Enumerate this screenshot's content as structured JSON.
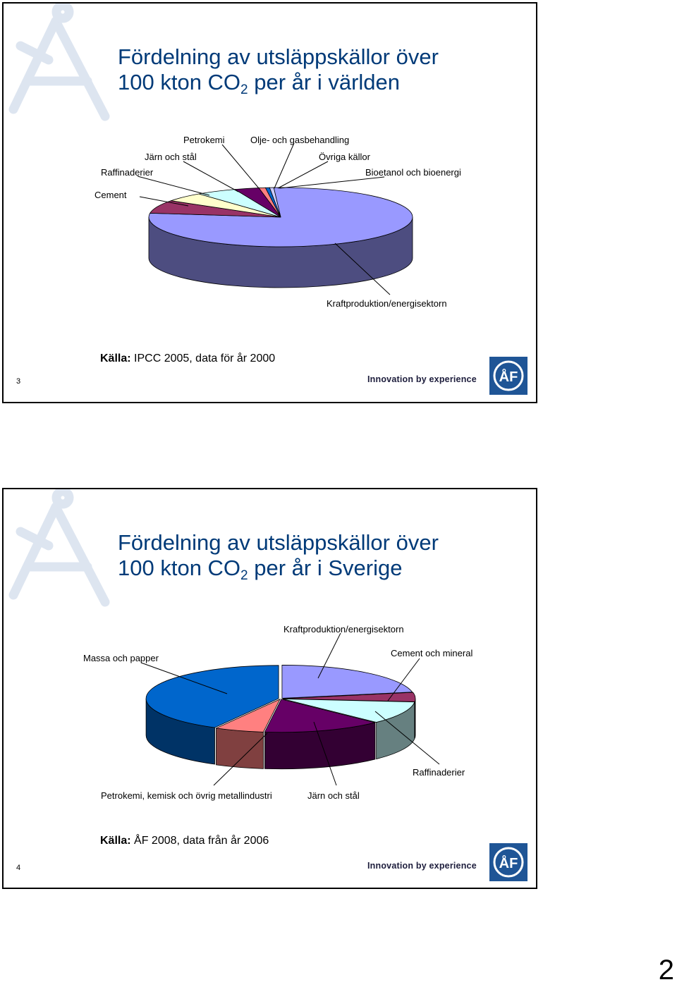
{
  "chart_data": [
    {
      "type": "pie",
      "title_line1": "Fördelning av utsläppskällor över",
      "title_line2_pre": "100 kton CO",
      "title_sub": "2",
      "title_line2_post": " per år i världen",
      "slices": [
        {
          "label": "Kraftproduktion/energisektorn",
          "value": 78.0,
          "color": "#9999ff"
        },
        {
          "label": "Cement",
          "value": 7.2,
          "color": "#993366"
        },
        {
          "label": "Raffinaderier",
          "value": 5.0,
          "color": "#ffffcc"
        },
        {
          "label": "Järn och stål",
          "value": 5.0,
          "color": "#ccffff"
        },
        {
          "label": "Petrokemi",
          "value": 3.0,
          "color": "#660066"
        },
        {
          "label": "Olje- och gasbehandling",
          "value": 0.8,
          "color": "#ff8080"
        },
        {
          "label": "Övriga källor",
          "value": 0.5,
          "color": "#0066cc"
        },
        {
          "label": "Bioetanol och bioenergi",
          "value": 0.5,
          "color": "#ccccff"
        }
      ],
      "source_prefix": "Källa:",
      "source_text": " IPCC 2005, data för år 2000"
    },
    {
      "type": "pie",
      "title_line1": "Fördelning av utsläppskällor över",
      "title_line2_pre": "100 kton CO",
      "title_sub": "2",
      "title_line2_post": " per år i Sverige",
      "slices": [
        {
          "label": "Kraftproduktion/energisektorn",
          "value": 22.0,
          "color": "#9999ff"
        },
        {
          "label": "Cement och mineral",
          "value": 4.5,
          "color": "#993366"
        },
        {
          "label": "Raffinaderier",
          "value": 11.0,
          "color": "#ccffff"
        },
        {
          "label": "Järn och stål",
          "value": 14.5,
          "color": "#660066"
        },
        {
          "label": "Petrokemi, kemisk och övrig metallindustri",
          "value": 6.0,
          "color": "#ff8080"
        },
        {
          "label": "Massa och papper",
          "value": 42.0,
          "color": "#0066cc"
        }
      ],
      "source_prefix": "Källa:",
      "source_text": " ÅF 2008, data från år 2006"
    }
  ],
  "slides": [
    {
      "number": "3",
      "tagline": "Innovation by experience",
      "logo_text": "ÅF"
    },
    {
      "number": "4",
      "tagline": "Innovation by experience",
      "logo_text": "ÅF"
    }
  ],
  "page_number": "2"
}
